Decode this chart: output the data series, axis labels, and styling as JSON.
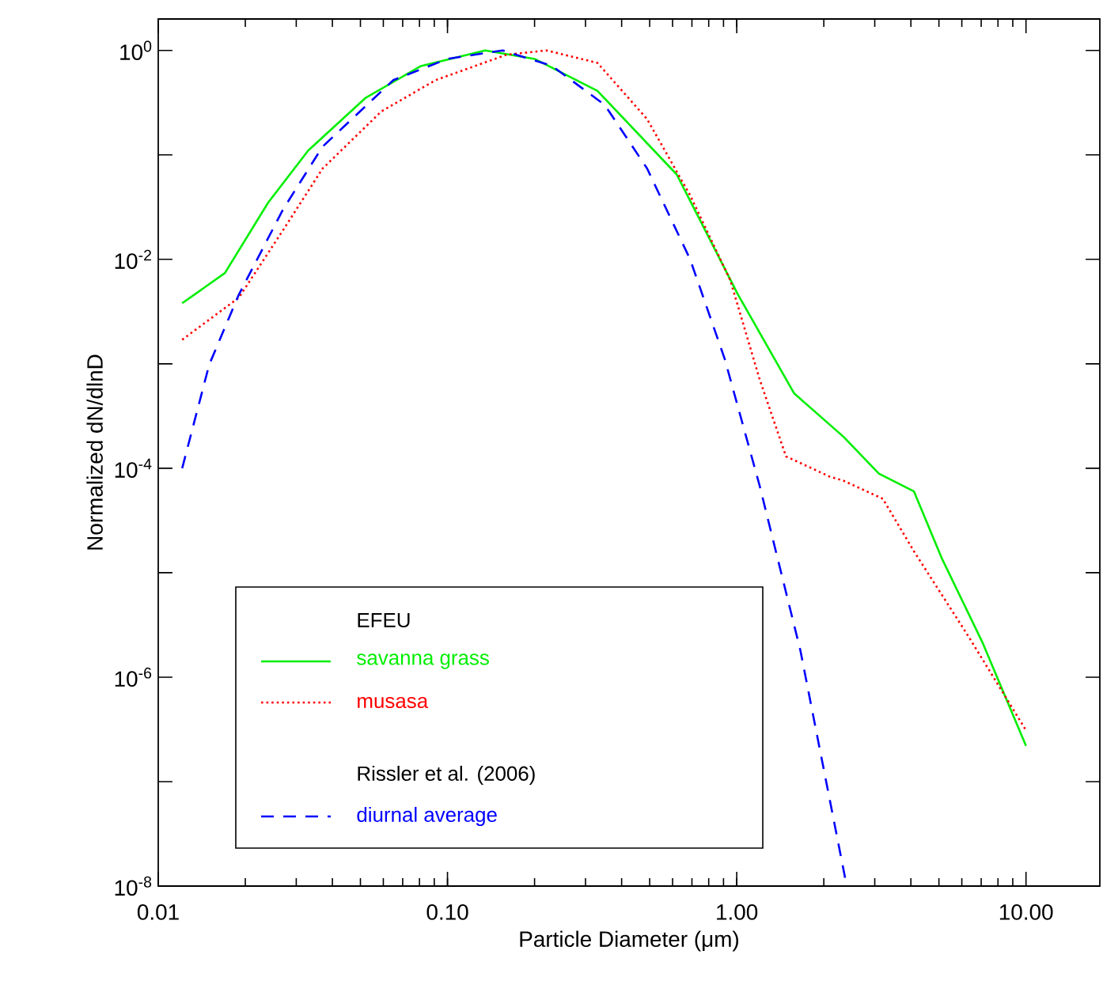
{
  "chart_data": {
    "type": "line",
    "xlabel": "Particle Diameter  (μm)",
    "ylabel": "Normalized dN/dlnD",
    "log": "xy",
    "grid": false,
    "legend": "bottom left",
    "legend_title": "EFEU",
    "annotations": [
      "Rissler et al. (2006)"
    ],
    "xlim": [
      0.01,
      18
    ],
    "ylim": [
      1e-08,
      2
    ],
    "xticks": [
      0.01,
      {
        "value": 0.1,
        "label": "0.10"
      },
      {
        "value": 1,
        "label": "1.00"
      },
      {
        "value": 10,
        "label": "10.00"
      }
    ],
    "yticks": [
      {
        "value": 1e-08,
        "label": "10$^{-8}$"
      },
      {
        "value": 1e-07,
        "label": null
      },
      {
        "value": 1e-06,
        "label": "10$^{-6}$"
      },
      {
        "value": 1e-05,
        "label": null
      },
      {
        "value": 0.0001,
        "label": "10$^{-4}$"
      },
      {
        "value": 0.001,
        "label": null
      },
      {
        "value": 0.01,
        "label": "10$^{-2}$"
      },
      {
        "value": 0.1,
        "label": null
      },
      {
        "value": 1,
        "label": "10$^{0}$"
      }
    ],
    "series": [
      {
        "name": "savanna grass",
        "color": "#00ee00",
        "line_style": "solid",
        "x": [
          0.0121,
          0.017,
          0.024,
          0.033,
          0.052,
          0.081,
          0.135,
          0.2,
          0.33,
          0.62,
          1.01,
          1.58,
          2.34,
          3.1,
          4.1,
          5.1,
          7.1,
          10
        ],
        "values": [
          0.0038,
          0.0074,
          0.035,
          0.11,
          0.35,
          0.71,
          1,
          0.83,
          0.41,
          0.065,
          0.0046,
          0.00052,
          0.0002,
          8.9e-05,
          6e-05,
          1.4e-05,
          2.1e-06,
          2.2e-07
        ]
      },
      {
        "name": "musasa",
        "color": "#ff0000",
        "line_style": "dotted",
        "x": [
          0.0121,
          0.019,
          0.027,
          0.037,
          0.059,
          0.091,
          0.16,
          0.22,
          0.33,
          0.49,
          0.69,
          0.95,
          1.2,
          1.48,
          2.1,
          2.34,
          3.2,
          4.1,
          6.3,
          10
        ],
        "values": [
          0.0017,
          0.0043,
          0.019,
          0.074,
          0.26,
          0.52,
          0.91,
          1,
          0.76,
          0.22,
          0.041,
          0.0063,
          0.00071,
          0.00013,
          8.3e-05,
          7.6e-05,
          5.1e-05,
          1.6e-05,
          2.5e-06,
          3.1e-07
        ]
      },
      {
        "name": "diurnal average",
        "color": "#0000ff",
        "line_style": "dashed",
        "x": [
          0.0121,
          0.015,
          0.019,
          0.027,
          0.037,
          0.065,
          0.1,
          0.155,
          0.23,
          0.35,
          0.49,
          0.69,
          0.91,
          1.2,
          1.66,
          2.4
        ],
        "values": [
          0.0001,
          0.00098,
          0.0046,
          0.03,
          0.12,
          0.52,
          0.83,
          1,
          0.71,
          0.3,
          0.074,
          0.01,
          0.0011,
          6.8e-05,
          1.8e-06,
          1e-08
        ]
      }
    ]
  }
}
